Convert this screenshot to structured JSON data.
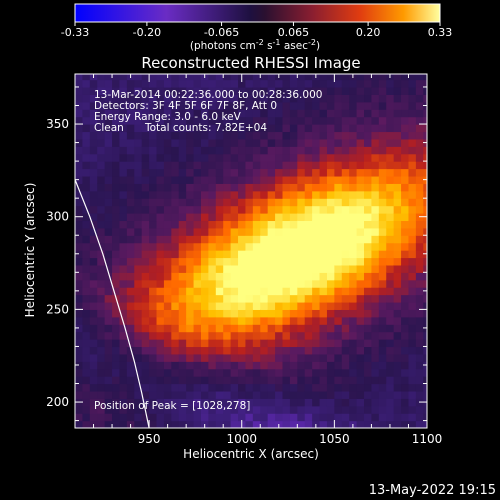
{
  "chart_data": {
    "type": "heatmap",
    "title": "Reconstructed RHESSI Image",
    "xlabel": "Heliocentric X (arcsec)",
    "ylabel": "Heliocentric Y (arcsec)",
    "xlim": [
      910,
      1100
    ],
    "ylim": [
      186,
      377
    ],
    "xticks": [
      "950",
      "1000",
      "1050",
      "1100"
    ],
    "yticks": [
      "200",
      "250",
      "300",
      "350"
    ],
    "colorbar": {
      "range": [
        -0.33,
        0.33
      ],
      "ticks": [
        "-0.33",
        "-0.20",
        "-0.065",
        "0.065",
        "0.20",
        "0.33"
      ],
      "unit_prefix": "(photons cm",
      "unit_exp1": "-2",
      "unit_mid": " s",
      "unit_exp2": "-1",
      "unit_mid2": " asec",
      "unit_exp3": "-2",
      "unit_suffix": ")"
    },
    "colormap_colors": [
      "#0000ff",
      "#6a2cc4",
      "#3d1f7a",
      "#2a1550",
      "#5a1a60",
      "#b8201e",
      "#ff6a00",
      "#ffc000",
      "#ffff80"
    ],
    "peak": {
      "x": 1028,
      "y": 278
    },
    "limb_curve": [
      [
        910,
        320
      ],
      [
        918,
        300
      ],
      [
        925,
        280
      ],
      [
        931,
        260
      ],
      [
        937,
        240
      ],
      [
        942,
        222
      ],
      [
        946,
        205
      ],
      [
        950,
        186
      ]
    ],
    "annotations": {
      "time_range": "13-Mar-2014 00:22:36.000 to 00:28:36.000",
      "detectors": "Detectors: 3F 4F 5F 6F 7F 8F, Att 0",
      "energy": "Energy Range: 3.0 - 6.0 keV",
      "algorithm": "Clean",
      "counts": "Total counts: 7.82E+04",
      "peak_text": "Position of Peak = [1028,278]"
    }
  },
  "footer": {
    "timestamp": "13-May-2022 19:15"
  }
}
